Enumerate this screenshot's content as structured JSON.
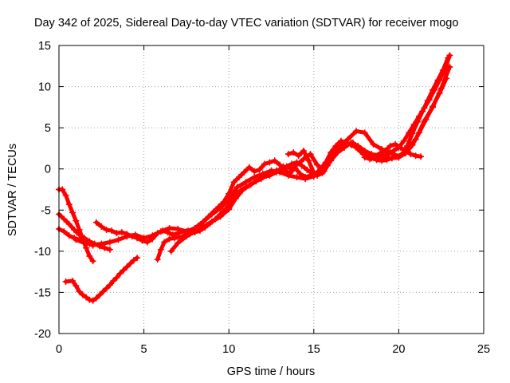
{
  "chart_data": {
    "type": "scatter",
    "title": "Day 342 of 2025, Sidereal Day-to-day VTEC variation (SDTVAR) for receiver mogo",
    "xlabel": "GPS time / hours",
    "ylabel": "SDTVAR / TECUs",
    "xlim": [
      0,
      25
    ],
    "ylim": [
      -20,
      15
    ],
    "xticks": [
      0,
      5,
      10,
      15,
      20,
      25
    ],
    "yticks": [
      -20,
      -15,
      -10,
      -5,
      0,
      5,
      10,
      15
    ],
    "grid": true,
    "marker": "plus",
    "color": "#ff0000",
    "series": [
      {
        "x": [
          0.0,
          0.2,
          0.4,
          0.6,
          0.8,
          1.0,
          1.2,
          1.4,
          1.6,
          1.8,
          2.0
        ],
        "y": [
          -2.5,
          -2.5,
          -3.2,
          -4.3,
          -5.3,
          -6.3,
          -7.4,
          -8.5,
          -9.6,
          -10.6,
          -11.2
        ]
      },
      {
        "x": [
          0.0,
          0.3,
          0.6,
          0.9,
          1.2,
          1.5,
          1.8,
          2.1,
          2.4,
          2.7,
          3.0
        ],
        "y": [
          -5.5,
          -6.1,
          -6.7,
          -7.4,
          -8.0,
          -8.4,
          -8.8,
          -9.1,
          -9.4,
          -9.6,
          -9.8
        ]
      },
      {
        "x": [
          0.0,
          0.3,
          0.6,
          0.9,
          1.2,
          1.5,
          1.8,
          2.0
        ],
        "y": [
          -7.3,
          -7.6,
          -8.1,
          -8.4,
          -8.6,
          -8.9,
          -9.1,
          -9.3
        ]
      },
      {
        "x": [
          0.4,
          0.8,
          1.0,
          1.2,
          1.4,
          1.6,
          1.8,
          2.0,
          2.2,
          2.4,
          2.6,
          2.8,
          3.0,
          3.2,
          3.4,
          3.6,
          3.8,
          4.0,
          4.2,
          4.4,
          4.6
        ],
        "y": [
          -13.7,
          -13.6,
          -14.2,
          -14.9,
          -15.3,
          -15.6,
          -15.9,
          -16.0,
          -15.7,
          -15.3,
          -14.9,
          -14.5,
          -14.1,
          -13.6,
          -13.2,
          -12.7,
          -12.3,
          -11.9,
          -11.5,
          -11.1,
          -10.8
        ]
      },
      {
        "x": [
          2.2,
          2.5,
          2.8,
          3.1,
          3.4,
          3.7,
          4.0,
          4.3,
          4.6,
          4.9,
          5.2,
          5.5,
          5.8,
          6.1,
          6.4,
          6.7,
          7.0,
          7.3,
          7.6,
          7.9,
          8.2,
          8.5,
          8.8,
          9.1,
          9.4,
          9.7,
          10.0,
          10.3,
          10.6,
          10.9,
          11.2,
          11.5,
          11.8,
          12.1,
          12.4,
          12.7,
          13.0,
          13.3,
          13.6,
          13.9,
          14.2,
          14.5,
          14.8,
          15.1,
          15.4,
          15.7,
          16.0,
          16.3,
          16.6,
          16.9,
          17.2,
          17.5,
          17.8,
          18.1,
          18.4,
          18.7,
          19.0,
          19.3,
          19.6,
          19.9,
          20.2,
          20.5,
          20.8,
          21.1,
          21.4,
          21.7,
          22.0,
          22.3,
          22.6,
          22.9
        ],
        "y": [
          -6.5,
          -7.0,
          -7.4,
          -7.5,
          -7.8,
          -7.7,
          -7.9,
          -8.2,
          -8.4,
          -8.7,
          -8.9,
          -8.5,
          -7.8,
          -7.5,
          -7.7,
          -8.0,
          -7.8,
          -7.6,
          -7.5,
          -7.4,
          -6.9,
          -6.4,
          -5.8,
          -5.2,
          -4.6,
          -4.0,
          -3.0,
          -1.6,
          -1.0,
          -0.4,
          0.2,
          -0.3,
          -0.1,
          0.6,
          0.8,
          1.0,
          0.5,
          -0.2,
          -0.5,
          0.1,
          -0.6,
          -1.0,
          -0.8,
          -0.6,
          0.0,
          0.8,
          2.0,
          2.8,
          3.4,
          3.2,
          2.9,
          2.6,
          2.2,
          1.7,
          1.3,
          1.1,
          1.0,
          1.1,
          1.3,
          1.5,
          1.8,
          2.8,
          4.3,
          5.7,
          7.0,
          8.3,
          9.6,
          10.8,
          12.0,
          13.5
        ]
      },
      {
        "x": [
          1.0,
          1.5,
          2.0,
          2.5,
          3.0,
          3.5,
          4.0,
          4.5,
          5.0,
          5.5,
          6.0,
          6.5,
          7.0,
          7.5,
          8.0,
          8.5,
          9.0,
          9.5,
          10.0,
          10.5,
          11.0,
          11.5,
          12.0,
          12.5,
          13.0,
          13.5,
          14.0,
          14.5,
          15.0,
          15.5,
          16.0,
          16.5,
          17.0,
          17.5,
          18.0,
          18.5,
          19.0,
          19.5,
          20.0,
          20.5,
          21.0,
          21.5,
          22.0,
          22.5,
          23.0
        ],
        "y": [
          -8.6,
          -9.0,
          -9.2,
          -9.1,
          -8.9,
          -8.6,
          -8.2,
          -8.0,
          -8.4,
          -8.1,
          -7.6,
          -7.2,
          -7.3,
          -7.6,
          -7.2,
          -6.4,
          -5.5,
          -4.8,
          -3.6,
          -2.2,
          -1.6,
          -1.0,
          -0.6,
          -0.2,
          -0.4,
          -0.8,
          -1.0,
          -1.2,
          -0.9,
          0.0,
          1.4,
          2.6,
          3.6,
          4.6,
          4.4,
          3.0,
          2.4,
          2.0,
          1.5,
          2.4,
          3.6,
          5.8,
          7.5,
          9.8,
          12.4
        ]
      },
      {
        "x": [
          5.8,
          6.0,
          6.2,
          6.5,
          6.8,
          7.1,
          7.4,
          7.7,
          8.0,
          8.3,
          8.6,
          8.9,
          9.2,
          9.5,
          9.8,
          10.1,
          10.4,
          10.7,
          11.0,
          11.3,
          11.6,
          11.9,
          12.2,
          12.5,
          12.8,
          13.1,
          13.4,
          13.7,
          14.0,
          14.3,
          14.6,
          14.9,
          15.2,
          15.5,
          15.8,
          16.1,
          16.4,
          16.7,
          17.0,
          17.3,
          17.6,
          17.9,
          18.2,
          18.5,
          18.8,
          19.1,
          19.4,
          19.7,
          20.0,
          20.3,
          20.6,
          20.9,
          21.2,
          21.5,
          21.8,
          22.1,
          22.4,
          22.7,
          23.0
        ],
        "y": [
          -11.0,
          -9.8,
          -8.9,
          -8.5,
          -8.4,
          -8.3,
          -8.1,
          -7.9,
          -7.7,
          -7.5,
          -7.1,
          -6.6,
          -6.1,
          -5.5,
          -4.9,
          -4.0,
          -3.1,
          -2.6,
          -2.2,
          -1.9,
          -1.5,
          -1.2,
          -0.8,
          -0.4,
          -0.2,
          0.0,
          0.3,
          0.6,
          0.8,
          0.4,
          -0.1,
          -0.5,
          -0.8,
          -0.5,
          0.4,
          1.5,
          2.2,
          2.8,
          3.0,
          3.2,
          2.4,
          1.8,
          1.7,
          1.6,
          1.5,
          1.6,
          1.8,
          2.2,
          2.6,
          3.4,
          4.4,
          5.4,
          6.4,
          7.4,
          8.4,
          9.6,
          10.8,
          12.0,
          13.8
        ]
      },
      {
        "x": [
          6.6,
          7.0,
          7.5,
          8.0,
          8.5,
          9.0,
          9.5,
          10.0,
          10.4,
          10.8,
          11.2,
          11.6,
          12.0,
          12.4,
          12.8,
          13.2,
          13.6,
          14.0,
          14.4,
          14.8,
          15.2,
          15.6,
          16.0,
          16.4,
          16.8,
          17.2,
          17.6,
          18.0,
          18.4,
          18.8,
          19.2,
          19.6,
          20.0,
          20.4,
          20.8,
          21.2,
          21.6,
          22.0,
          22.4,
          22.8
        ],
        "y": [
          -10.0,
          -9.0,
          -8.2,
          -7.6,
          -7.0,
          -6.4,
          -5.8,
          -4.9,
          -3.6,
          -2.6,
          -2.0,
          -1.5,
          -1.0,
          -0.8,
          -0.4,
          0.3,
          0.1,
          0.5,
          1.2,
          1.8,
          0.5,
          -0.3,
          1.0,
          2.0,
          2.6,
          3.2,
          2.8,
          2.2,
          1.8,
          1.6,
          1.4,
          1.3,
          1.4,
          1.9,
          2.9,
          4.4,
          6.0,
          7.6,
          9.2,
          11.0
        ]
      },
      {
        "x": [
          13.5,
          13.8,
          14.1,
          14.4,
          14.7,
          15.0
        ],
        "y": [
          1.8,
          2.0,
          1.6,
          2.2,
          1.0,
          -0.5
        ]
      },
      {
        "x": [
          18.0,
          18.3,
          18.6,
          18.9,
          19.2,
          19.5,
          19.8,
          20.1,
          20.4,
          20.7,
          21.0,
          21.3
        ],
        "y": [
          1.4,
          1.2,
          1.6,
          1.9,
          2.2,
          2.8,
          3.0,
          2.6,
          2.2,
          1.8,
          1.6,
          1.5
        ]
      }
    ]
  }
}
